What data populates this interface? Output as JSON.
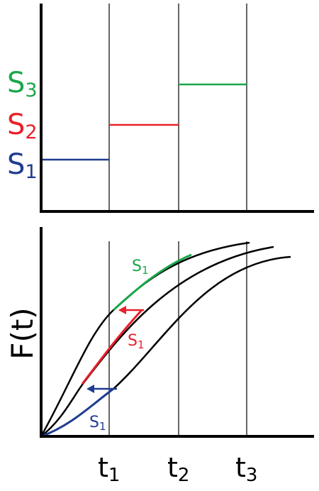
{
  "top_panel": {
    "stress_labels": [
      {
        "base": "S",
        "sub": "3"
      },
      {
        "base": "S",
        "sub": "2"
      },
      {
        "base": "S",
        "sub": "1"
      }
    ]
  },
  "bottom_panel": {
    "y_label": "F(t)",
    "curve_labels": [
      {
        "base": "S",
        "sub": "1"
      },
      {
        "base": "S",
        "sub": "1"
      },
      {
        "base": "S",
        "sub": "1"
      }
    ]
  },
  "x_labels": [
    {
      "base": "t",
      "sub": "1"
    },
    {
      "base": "t",
      "sub": "2"
    },
    {
      "base": "t",
      "sub": "3"
    }
  ]
}
